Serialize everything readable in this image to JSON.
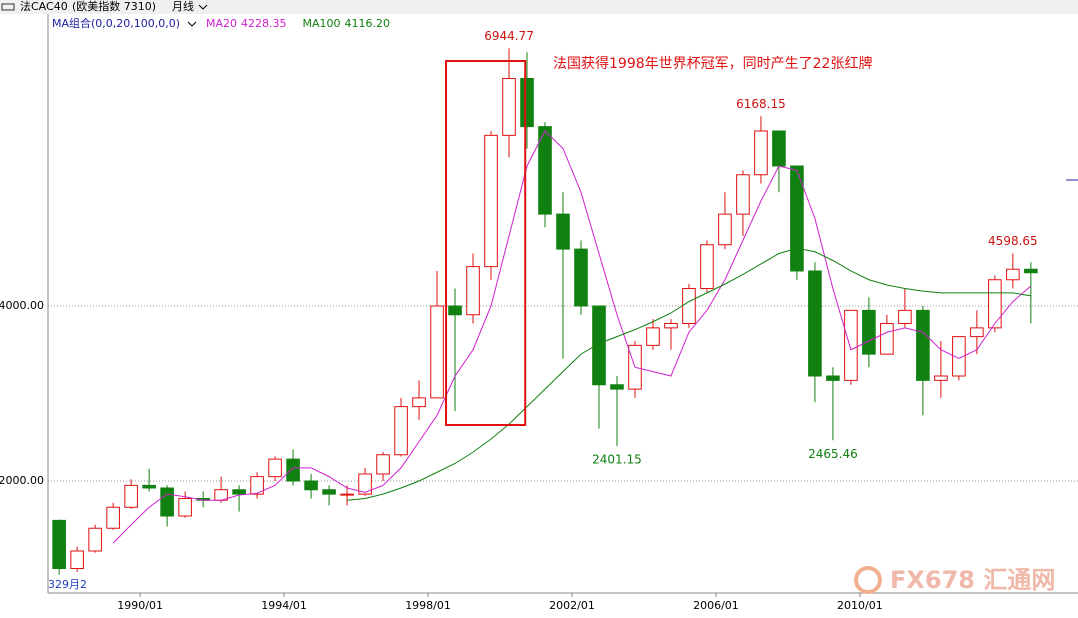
{
  "header": {
    "symbol": "法CAC40",
    "market": "(欧美指数 7310)",
    "period": "月线"
  },
  "chart_data": {
    "type": "candlestick",
    "indicator_label": "MA组合(0,0,20,100,0,0)",
    "note": "法国获得1998年世界杯冠军，同时产生了22张红牌",
    "low_label": "329月2",
    "watermark": "FX678 汇通网",
    "xlim": [
      1987.44,
      2016.06
    ],
    "ylim": [
      720,
      7337
    ],
    "xticks": [
      {
        "value": 1990,
        "label": "1990/01"
      },
      {
        "value": 1994,
        "label": "1994/01"
      },
      {
        "value": 1998,
        "label": "1998/01"
      },
      {
        "value": 2002,
        "label": "2002/01"
      },
      {
        "value": 2006,
        "label": "2006/01"
      },
      {
        "value": 2010,
        "label": "2010/01"
      }
    ],
    "yticks": [
      {
        "value": 2000,
        "label": "2000.00"
      },
      {
        "value": 4000,
        "label": "4000.00"
      }
    ],
    "grid": true,
    "up_color": "#e01010",
    "down_color": "#108010",
    "candles": {
      "x": [
        1987.75,
        1988.25,
        1988.75,
        1989.25,
        1989.75,
        1990.25,
        1990.75,
        1991.25,
        1991.75,
        1992.25,
        1992.75,
        1993.25,
        1993.75,
        1994.25,
        1994.75,
        1995.25,
        1995.75,
        1996.25,
        1996.75,
        1997.25,
        1997.75,
        1998.25,
        1998.75,
        1999.25,
        1999.75,
        2000.25,
        2000.75,
        2001.25,
        2001.75,
        2002.25,
        2002.75,
        2003.25,
        2003.75,
        2004.25,
        2004.75,
        2005.25,
        2005.75,
        2006.25,
        2006.75,
        2007.25,
        2007.75,
        2008.25,
        2008.75,
        2009.25,
        2009.75,
        2010.25,
        2010.75,
        2011.25,
        2011.75,
        2012.25,
        2012.75,
        2013.25,
        2013.75,
        2014.25,
        2014.75
      ],
      "open": [
        1550,
        1000,
        1200,
        1460,
        1700,
        1950,
        1920,
        1600,
        1800,
        1780,
        1900,
        1850,
        2050,
        2250,
        2000,
        1900,
        1850,
        1850,
        2080,
        2300,
        2850,
        2950,
        4000,
        3900,
        4450,
        5950,
        6600,
        6050,
        5050,
        4650,
        4000,
        3100,
        3050,
        3550,
        3750,
        3800,
        4200,
        4700,
        5050,
        5500,
        6000,
        5600,
        4400,
        3200,
        3150,
        3950,
        3450,
        3800,
        3950,
        3150,
        3200,
        3650,
        3750,
        4300,
        4420
      ],
      "high": [
        1560,
        1250,
        1500,
        1750,
        2020,
        2140,
        1950,
        1880,
        1880,
        2050,
        1950,
        2100,
        2280,
        2360,
        2080,
        1950,
        1950,
        2150,
        2330,
        2950,
        3150,
        4400,
        4200,
        4600,
        6000,
        6944.77,
        6900,
        6100,
        5300,
        4750,
        4000,
        3200,
        3600,
        3850,
        3850,
        4250,
        4750,
        5300,
        5550,
        6168.15,
        6000,
        5600,
        4500,
        3300,
        3950,
        4100,
        3900,
        4200,
        4000,
        3600,
        3650,
        3950,
        4350,
        4598.65,
        4500
      ],
      "low": [
        930,
        960,
        1180,
        1440,
        1680,
        1880,
        1480,
        1580,
        1700,
        1750,
        1650,
        1800,
        2000,
        1950,
        1800,
        1720,
        1720,
        1830,
        2000,
        2280,
        2700,
        2950,
        2800,
        3800,
        4300,
        5700,
        5800,
        4900,
        3400,
        3900,
        2600,
        2401.15,
        2950,
        3500,
        3500,
        3750,
        4150,
        4650,
        4800,
        5400,
        5300,
        4300,
        2900,
        2465.46,
        3100,
        3300,
        3450,
        3750,
        2750,
        2950,
        3150,
        3450,
        3700,
        4200,
        3800
      ],
      "close": [
        1000,
        1200,
        1460,
        1700,
        1950,
        1920,
        1600,
        1800,
        1780,
        1900,
        1850,
        2050,
        2250,
        2000,
        1900,
        1850,
        1850,
        2080,
        2300,
        2850,
        2950,
        4000,
        3900,
        4450,
        5950,
        6600,
        6050,
        5050,
        4650,
        4000,
        3100,
        3050,
        3550,
        3750,
        3800,
        4200,
        4700,
        5050,
        5500,
        6000,
        5600,
        4400,
        3200,
        3150,
        3950,
        3450,
        3800,
        3950,
        3150,
        3200,
        3650,
        3750,
        4300,
        4420,
        4380
      ]
    },
    "series": [
      {
        "name": "MA20",
        "color": "#d020d0",
        "legend_value": {
          "value": 4228.35,
          "label": "4228.35"
        },
        "x": [
          1989.25,
          1989.75,
          1990.25,
          1990.75,
          1991.25,
          1991.75,
          1992.25,
          1992.75,
          1993.25,
          1993.75,
          1994.25,
          1994.75,
          1995.25,
          1995.75,
          1996.25,
          1996.75,
          1997.25,
          1997.75,
          1998.25,
          1998.75,
          1999.25,
          1999.75,
          2000.25,
          2000.75,
          2001.25,
          2001.75,
          2002.25,
          2002.75,
          2003.25,
          2003.75,
          2004.25,
          2004.75,
          2005.25,
          2005.75,
          2006.25,
          2006.75,
          2007.25,
          2007.75,
          2008.25,
          2008.75,
          2009.25,
          2009.75,
          2010.25,
          2010.75,
          2011.25,
          2011.75,
          2012.25,
          2012.75,
          2013.25,
          2013.75,
          2014.25,
          2014.75
        ],
        "values": [
          1290,
          1500,
          1700,
          1850,
          1820,
          1780,
          1780,
          1840,
          1860,
          1950,
          2150,
          2150,
          2050,
          1920,
          1870,
          1950,
          2150,
          2450,
          2750,
          3200,
          3500,
          4000,
          4800,
          5600,
          6000,
          5800,
          5300,
          4600,
          3900,
          3300,
          3250,
          3200,
          3700,
          3950,
          4300,
          4750,
          5200,
          5600,
          5550,
          5000,
          4200,
          3500,
          3600,
          3700,
          3750,
          3700,
          3500,
          3400,
          3500,
          3800,
          4050,
          4228.35
        ]
      },
      {
        "name": "MA100",
        "color": "#108010",
        "legend_value": {
          "value": 4116.2,
          "label": "4116.20"
        },
        "x": [
          1995.75,
          1996.25,
          1996.75,
          1997.25,
          1997.75,
          1998.25,
          1998.75,
          1999.25,
          1999.75,
          2000.25,
          2000.75,
          2001.25,
          2001.75,
          2002.25,
          2002.75,
          2003.25,
          2003.75,
          2004.25,
          2004.75,
          2005.25,
          2005.75,
          2006.25,
          2006.75,
          2007.25,
          2007.75,
          2008.25,
          2008.75,
          2009.25,
          2009.75,
          2010.25,
          2010.75,
          2011.25,
          2011.75,
          2012.25,
          2012.75,
          2013.25,
          2013.75,
          2014.25,
          2014.75
        ],
        "values": [
          1780,
          1800,
          1850,
          1920,
          2000,
          2100,
          2200,
          2330,
          2480,
          2650,
          2850,
          3050,
          3250,
          3450,
          3570,
          3650,
          3730,
          3820,
          3920,
          4050,
          4150,
          4250,
          4360,
          4480,
          4600,
          4660,
          4620,
          4520,
          4400,
          4300,
          4240,
          4200,
          4170,
          4150,
          4150,
          4150,
          4150,
          4150,
          4116.2
        ]
      }
    ],
    "highlight": {
      "x": [
        1998.5,
        2000.7
      ],
      "y": [
        2640,
        6800
      ]
    },
    "annotations": [
      {
        "label": "6944.77",
        "x": 2000.25,
        "y": 6944.77,
        "color": "#d01010",
        "pos": "above"
      },
      {
        "label": "6168.15",
        "x": 2007.25,
        "y": 6168.15,
        "color": "#d01010",
        "pos": "above"
      },
      {
        "label": "2401.15",
        "x": 2003.25,
        "y": 2401.15,
        "color": "#108010",
        "pos": "below"
      },
      {
        "label": "2465.46",
        "x": 2009.25,
        "y": 2465.46,
        "color": "#108010",
        "pos": "below"
      },
      {
        "label": "4598.65",
        "x": 2014.25,
        "y": 4598.65,
        "color": "#d01010",
        "pos": "above"
      }
    ]
  }
}
